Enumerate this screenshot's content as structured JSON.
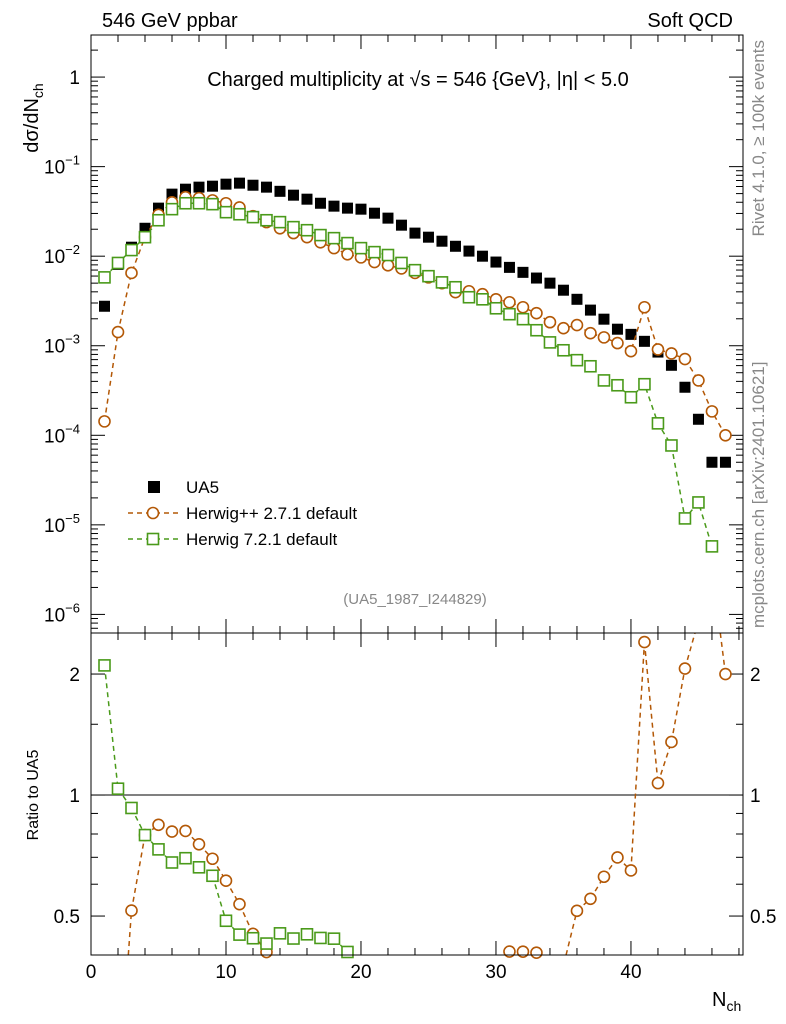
{
  "header": {
    "left": "546 GeV ppbar",
    "right": "Soft QCD"
  },
  "side_text": {
    "top": "Rivet 4.1.0, ≥ 100k events",
    "bottom": "mcplots.cern.ch [arXiv:2401.10621]"
  },
  "colors": {
    "UA5": "#000000",
    "HerwigPP": "#b35806",
    "Herwig7": "#4a9a1a"
  },
  "chart_data": [
    {
      "type": "scatter",
      "title": "Charged multiplicity at √s = 546 {GeV}, |η| < 5.0",
      "analysis_label": "(UA5_1987_I244829)",
      "ylabel": "dσ/dN_ch",
      "xlabel": "N_ch",
      "xlim": [
        0,
        48.3
      ],
      "ylim": [
        6.2e-07,
        2.95
      ],
      "yscale": "log",
      "xticks": [
        "0",
        "10",
        "20",
        "30",
        "40"
      ],
      "yticks": [
        "1",
        "10^-1",
        "10^-2",
        "10^-3",
        "10^-4",
        "10^-5",
        "10^-6"
      ],
      "legend_position": "bottom-left",
      "series": [
        {
          "name": "UA5",
          "key": "UA5",
          "marker": "filled-square",
          "x": [
            1,
            2,
            3,
            4,
            5,
            6,
            7,
            8,
            9,
            10,
            11,
            12,
            13,
            14,
            15,
            16,
            17,
            18,
            19,
            20,
            21,
            22,
            23,
            24,
            25,
            26,
            27,
            28,
            29,
            30,
            31,
            32,
            33,
            34,
            35,
            36,
            37,
            38,
            39,
            40,
            41,
            42,
            43,
            44,
            45,
            46,
            47
          ],
          "y": [
            0.00276,
            0.0081,
            0.0126,
            0.0205,
            0.0344,
            0.0493,
            0.056,
            0.059,
            0.0605,
            0.0637,
            0.0654,
            0.062,
            0.059,
            0.053,
            0.048,
            0.0433,
            0.039,
            0.0362,
            0.0344,
            0.0335,
            0.0302,
            0.0266,
            0.0222,
            0.0181,
            0.0163,
            0.0147,
            0.0129,
            0.0114,
            0.01,
            0.0086,
            0.0075,
            0.0066,
            0.0057,
            0.005,
            0.00417,
            0.0033,
            0.0025,
            0.00198,
            0.00153,
            0.00134,
            0.00112,
            0.00085,
            0.000605,
            0.000344,
            0.000151,
            5e-05,
            5e-05
          ]
        },
        {
          "name": "Herwig++ 2.7.1 default",
          "key": "HerwigPP",
          "marker": "open-circle",
          "x": [
            1,
            2,
            3,
            4,
            5,
            6,
            7,
            8,
            9,
            10,
            11,
            12,
            13,
            14,
            15,
            16,
            17,
            18,
            19,
            20,
            21,
            22,
            23,
            24,
            25,
            26,
            27,
            28,
            29,
            30,
            31,
            32,
            33,
            34,
            35,
            36,
            37,
            38,
            39,
            40,
            41,
            42,
            43,
            44,
            45,
            46,
            47
          ],
          "y": [
            0.000143,
            0.00142,
            0.0065,
            0.0163,
            0.029,
            0.04,
            0.0456,
            0.0445,
            0.042,
            0.039,
            0.035,
            0.028,
            0.024,
            0.0205,
            0.0181,
            0.0163,
            0.0143,
            0.0123,
            0.0105,
            0.0097,
            0.0086,
            0.0079,
            0.0073,
            0.0065,
            0.0058,
            0.005,
            0.00396,
            0.00406,
            0.00376,
            0.0033,
            0.00306,
            0.00269,
            0.00231,
            0.00183,
            0.00157,
            0.0017,
            0.00138,
            0.00124,
            0.00107,
            0.00087,
            0.00269,
            0.00091,
            0.00082,
            0.00071,
            0.00041,
            0.000185,
            0.0001
          ]
        },
        {
          "name": "Herwig 7.2.1 default",
          "key": "Herwig7",
          "marker": "open-square",
          "x": [
            1,
            2,
            3,
            4,
            5,
            6,
            7,
            8,
            9,
            10,
            11,
            12,
            13,
            14,
            15,
            16,
            17,
            18,
            19,
            20,
            21,
            22,
            23,
            24,
            25,
            26,
            27,
            28,
            29,
            30,
            31,
            32,
            33,
            34,
            35,
            36,
            37,
            38,
            39,
            40,
            41,
            42,
            43,
            44,
            45,
            46
          ],
          "y": [
            0.0058,
            0.0084,
            0.0117,
            0.0163,
            0.0252,
            0.0335,
            0.039,
            0.039,
            0.0381,
            0.031,
            0.0294,
            0.0273,
            0.0252,
            0.024,
            0.0211,
            0.0195,
            0.0172,
            0.0159,
            0.014,
            0.0123,
            0.0111,
            0.0103,
            0.0084,
            0.00698,
            0.00598,
            0.0051,
            0.0045,
            0.00348,
            0.0033,
            0.00262,
            0.00225,
            0.00198,
            0.00149,
            0.00109,
            0.00089,
            0.00069,
            0.00059,
            0.00041,
            0.000362,
            0.000266,
            0.000372,
            0.000136,
            7.7e-05,
            1.18e-05,
            1.78e-05,
            5.75e-06
          ]
        }
      ]
    },
    {
      "type": "line",
      "ylabel": "Ratio to UA5",
      "yscale": "log",
      "ylim": [
        0.4,
        2.53
      ],
      "yticks": [
        "0.5",
        "1",
        "2"
      ],
      "reference": "UA5"
    }
  ]
}
